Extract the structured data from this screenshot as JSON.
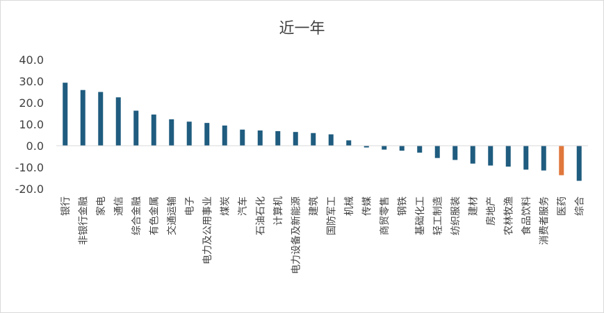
{
  "chart_data": {
    "type": "bar",
    "title": "近一年",
    "xlabel": "",
    "ylabel": "",
    "ylim": [
      -20,
      40
    ],
    "yticks": [
      "40.0",
      "30.0",
      "20.0",
      "10.0",
      "0.0",
      "-10.0",
      "-20.0"
    ],
    "grid": false,
    "legend": "none",
    "colors": {
      "default": "#1f5c7f",
      "highlight": "#e0773c",
      "axis": "#d9d9d9"
    },
    "highlight_category": "医药",
    "categories": [
      "银行",
      "非银行金融",
      "家电",
      "通信",
      "综合金融",
      "有色金属",
      "交通运输",
      "电子",
      "电力及公用事业",
      "煤炭",
      "汽车",
      "石油石化",
      "计算机",
      "电力设备及新能源",
      "建筑",
      "国防军工",
      "机械",
      "传媒",
      "商贸零售",
      "钢铁",
      "基础化工",
      "轻工制造",
      "纺织服装",
      "建材",
      "房地产",
      "农林牧渔",
      "食品饮料",
      "消费者服务",
      "医药",
      "综合"
    ],
    "values": [
      29.3,
      25.9,
      25.0,
      22.5,
      16.3,
      14.5,
      12.3,
      11.2,
      10.6,
      9.4,
      7.5,
      7.1,
      6.8,
      6.4,
      5.9,
      5.3,
      2.5,
      -0.8,
      -1.8,
      -2.3,
      -3.2,
      -5.7,
      -6.6,
      -8.3,
      -9.2,
      -9.7,
      -11.1,
      -11.5,
      -13.7,
      -16.3
    ]
  }
}
